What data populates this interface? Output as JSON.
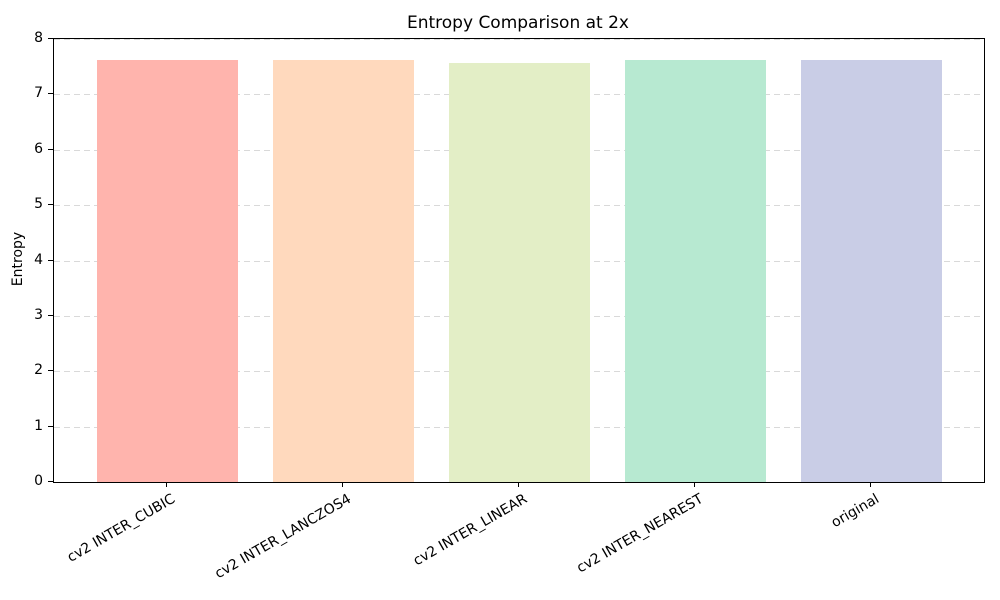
{
  "chart_data": {
    "type": "bar",
    "title": "Entropy Comparison at 2x",
    "xlabel": "",
    "ylabel": "Entropy",
    "categories": [
      "cv2 INTER_CUBIC",
      "cv2 INTER_LANCZOS4",
      "cv2 INTER_LINEAR",
      "cv2 INTER_NEAREST",
      "original"
    ],
    "values": [
      7.62,
      7.62,
      7.56,
      7.63,
      7.62
    ],
    "bar_colors": [
      "#ffb4ad",
      "#ffd9bd",
      "#e3eec6",
      "#b7e9d1",
      "#c9cde6"
    ],
    "ylim": [
      0,
      8
    ],
    "yticks": [
      0,
      1,
      2,
      3,
      4,
      5,
      6,
      7,
      8
    ],
    "grid": "horizontal dashed",
    "gridline_color": "#d9d9d9",
    "legend": "none",
    "x_tick_rotation_deg": 30
  }
}
